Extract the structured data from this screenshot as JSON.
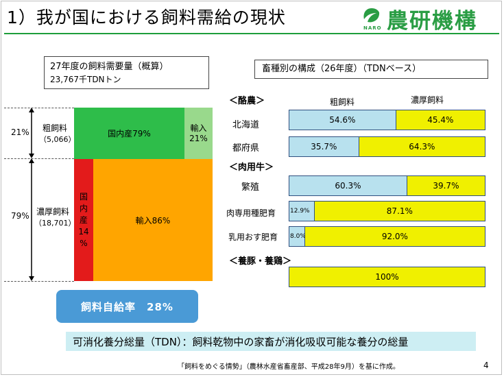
{
  "header": {
    "title": "1）我が国における飼料需給の現状",
    "logo_small": "NARO",
    "logo_text": "農研機構"
  },
  "demand": {
    "title": "27年度の飼料需要量（概算）",
    "amount": "23,767千TDNトン"
  },
  "mosaic": {
    "rough_label": "粗飼料",
    "rough_amount": "（5,066）",
    "rough_pct": "21%",
    "conc_label": "濃厚飼料",
    "conc_amount": "（18,701）",
    "conc_pct": "79%",
    "rough_domestic": "国内産79%",
    "rough_import_1": "輸入",
    "rough_import_2": "21%",
    "conc_domestic_chars": [
      "国",
      "内",
      "産",
      "14",
      "%"
    ],
    "conc_import": "輸入86%"
  },
  "self_sufficiency": "飼料自給率　28%",
  "composition": {
    "title": "畜種別の構成（26年度）（TDNベース）",
    "col_rough": "粗飼料",
    "col_conc": "濃厚飼料",
    "sections": [
      {
        "label": "＜酪農＞"
      },
      {
        "label": "＜肉用牛＞"
      },
      {
        "label": "＜養豚・養鶏＞"
      }
    ],
    "rows": [
      {
        "label": "北海道",
        "rough": 54.6,
        "conc": 45.4,
        "rough_text": "54.6%",
        "conc_text": "45.4%"
      },
      {
        "label": "都府県",
        "rough": 35.7,
        "conc": 64.3,
        "rough_text": "35.7%",
        "conc_text": "64.3%"
      },
      {
        "label": "繁殖",
        "rough": 60.3,
        "conc": 39.7,
        "rough_text": "60.3%",
        "conc_text": "39.7%"
      },
      {
        "label": "肉専用種肥育",
        "rough": 12.9,
        "conc": 87.1,
        "rough_text": "12.9%",
        "conc_text": "87.1%"
      },
      {
        "label": "乳用おす肥育",
        "rough": 8.0,
        "conc": 92.0,
        "rough_text": "8.0%",
        "conc_text": "92.0%"
      },
      {
        "label": "",
        "rough": 0,
        "conc": 100,
        "rough_text": "",
        "conc_text": "100%"
      }
    ]
  },
  "chart_data": [
    {
      "type": "bar",
      "title": "27年度の飼料需要量（概算）",
      "subtitle": "23,767千TDNトン",
      "categories": [
        "粗飼料（5,066）",
        "濃厚飼料（18,701）"
      ],
      "category_share": [
        21,
        79
      ],
      "series": [
        {
          "name": "国内産",
          "values": [
            79,
            14
          ]
        },
        {
          "name": "輸入",
          "values": [
            21,
            86
          ]
        }
      ]
    },
    {
      "type": "bar",
      "title": "畜種別の構成（26年度）（TDNベース）",
      "categories": [
        "北海道",
        "都府県",
        "繁殖",
        "肉専用種肥育",
        "乳用おす肥育",
        "養豚・養鶏"
      ],
      "series": [
        {
          "name": "粗飼料",
          "values": [
            54.6,
            35.7,
            60.3,
            12.9,
            8.0,
            0
          ]
        },
        {
          "name": "濃厚飼料",
          "values": [
            45.4,
            64.3,
            39.7,
            87.1,
            92.0,
            100
          ]
        }
      ]
    }
  ],
  "tdn_note": "可消化養分総量（TDN）：飼料乾物中の家畜が消化吸収可能な養分の総量",
  "source": "「飼料をめぐる情勢」（農林水産省畜産部、平成28年9月）を基に作成。",
  "page_number": "4",
  "colors": {
    "title_line": "#1e9e3a",
    "logo_green": "#2a9d44",
    "rough_domestic": "#2ebd4a",
    "rough_import": "#99d98c",
    "conc_domestic": "#e31b1b",
    "conc_import": "#ffa500",
    "bar_rough": "#b8e1ee",
    "bar_conc": "#f0f000",
    "self_btn": "#4a9ad6",
    "tdn_note_bg": "#cdeef3"
  }
}
